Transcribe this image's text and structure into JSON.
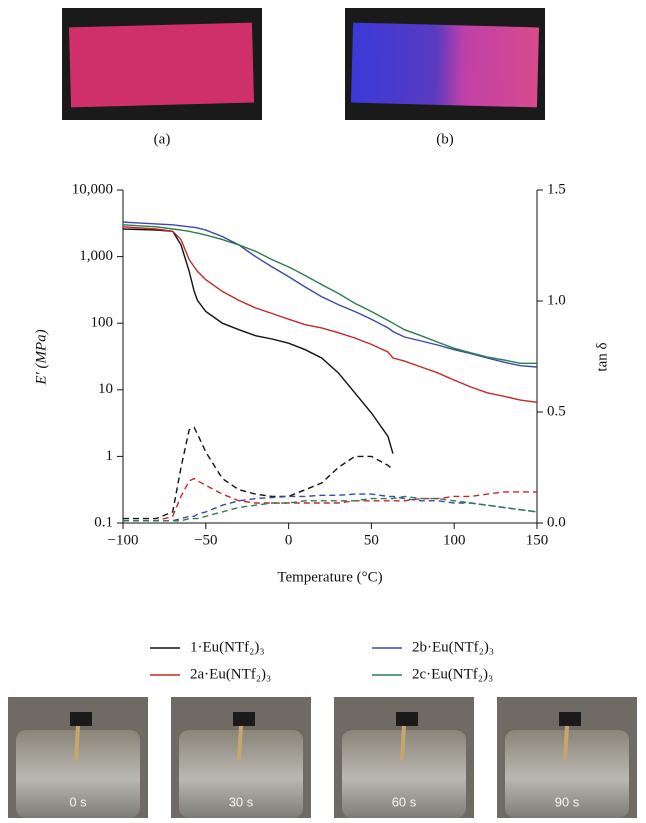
{
  "panels": [
    "(a)",
    "(b)"
  ],
  "frames": [
    "0 s",
    "30 s",
    "60 s",
    "90 s"
  ],
  "chart_data": {
    "type": "line",
    "x_label": "Temperature (°C)",
    "y_label": "E′ (MPa)",
    "y2_label": "tan δ",
    "xlim": [
      -100,
      150
    ],
    "xticks": [
      {
        "value": -100,
        "label": "−100"
      },
      {
        "value": -50,
        "label": "−50"
      },
      0,
      50,
      100,
      150
    ],
    "ylim": [
      0.1,
      10000
    ],
    "log_y": true,
    "yticks": [
      0.1,
      1,
      10,
      100,
      {
        "value": 1000,
        "label": "1,000"
      },
      {
        "value": 10000,
        "label": "10,000"
      }
    ],
    "y2lim": [
      0,
      1.5
    ],
    "y2ticks": [
      {
        "value": 0,
        "label": "0.0"
      },
      0.5,
      {
        "value": 1,
        "label": "1.0"
      },
      1.5
    ],
    "x": [
      -100,
      -80,
      -70,
      -65,
      -60,
      -57,
      -55,
      -50,
      -40,
      -30,
      -20,
      -10,
      0,
      10,
      20,
      30,
      40,
      50,
      60,
      63,
      70,
      80,
      90,
      100,
      110,
      120,
      130,
      140,
      150
    ],
    "series": [
      {
        "name": "1·Eu(NTf₂)₃",
        "color": "#111111",
        "values": [
          2600,
          2500,
          2400,
          1500,
          600,
          300,
          220,
          150,
          100,
          80,
          65,
          58,
          50,
          40,
          30,
          18,
          9,
          4.5,
          2,
          1.1,
          null,
          null,
          null,
          null,
          null,
          null,
          null,
          null,
          null
        ],
        "y2_values": [
          0.02,
          0.02,
          0.05,
          0.25,
          0.42,
          0.43,
          0.4,
          0.32,
          0.2,
          0.15,
          0.13,
          0.12,
          0.12,
          0.15,
          0.18,
          0.25,
          0.3,
          0.3,
          0.26,
          0.24,
          null,
          null,
          null,
          null,
          null,
          null,
          null,
          null,
          null
        ]
      },
      {
        "name": "2a·Eu(NTf₂)₃",
        "color": "#c62828",
        "values": [
          2800,
          2600,
          2400,
          1800,
          900,
          700,
          600,
          450,
          300,
          220,
          170,
          140,
          115,
          95,
          85,
          72,
          60,
          48,
          37,
          30,
          27,
          22,
          18,
          14,
          11,
          9,
          8,
          7,
          6.5
        ],
        "y2_values": [
          0.01,
          0.01,
          0.03,
          0.12,
          0.19,
          0.2,
          0.19,
          0.17,
          0.13,
          0.1,
          0.09,
          0.09,
          0.09,
          0.09,
          0.09,
          0.09,
          0.1,
          0.1,
          0.1,
          0.1,
          0.1,
          0.11,
          0.11,
          0.12,
          0.12,
          0.13,
          0.14,
          0.14,
          0.14
        ]
      },
      {
        "name": "2b·Eu(NTf₂)₃",
        "color": "#3949ab",
        "values": [
          3300,
          3100,
          3000,
          2900,
          2800,
          2750,
          2700,
          2500,
          2000,
          1500,
          1000,
          700,
          500,
          350,
          250,
          190,
          150,
          115,
          85,
          75,
          62,
          54,
          47,
          40,
          35,
          30,
          26,
          23,
          22
        ],
        "y2_values": [
          0.01,
          0.01,
          0.01,
          0.02,
          0.03,
          0.03,
          0.04,
          0.05,
          0.08,
          0.1,
          0.11,
          0.115,
          0.12,
          0.12,
          0.125,
          0.125,
          0.13,
          0.13,
          0.12,
          0.12,
          0.11,
          0.1,
          0.1,
          0.09,
          0.09,
          0.08,
          0.07,
          0.06,
          0.05
        ]
      },
      {
        "name": "2c·Eu(NTf₂)₃",
        "color": "#2e7d4f",
        "values": [
          3000,
          2800,
          2600,
          2500,
          2400,
          2300,
          2250,
          2100,
          1800,
          1500,
          1200,
          900,
          700,
          520,
          380,
          280,
          200,
          150,
          110,
          100,
          80,
          65,
          52,
          42,
          36,
          31,
          28,
          25,
          25
        ],
        "y2_values": [
          0.01,
          0.01,
          0.01,
          0.01,
          0.02,
          0.02,
          0.02,
          0.03,
          0.05,
          0.07,
          0.08,
          0.09,
          0.09,
          0.1,
          0.1,
          0.1,
          0.1,
          0.11,
          0.11,
          0.11,
          0.12,
          0.11,
          0.11,
          0.1,
          0.09,
          0.08,
          0.07,
          0.06,
          0.05
        ]
      }
    ]
  }
}
